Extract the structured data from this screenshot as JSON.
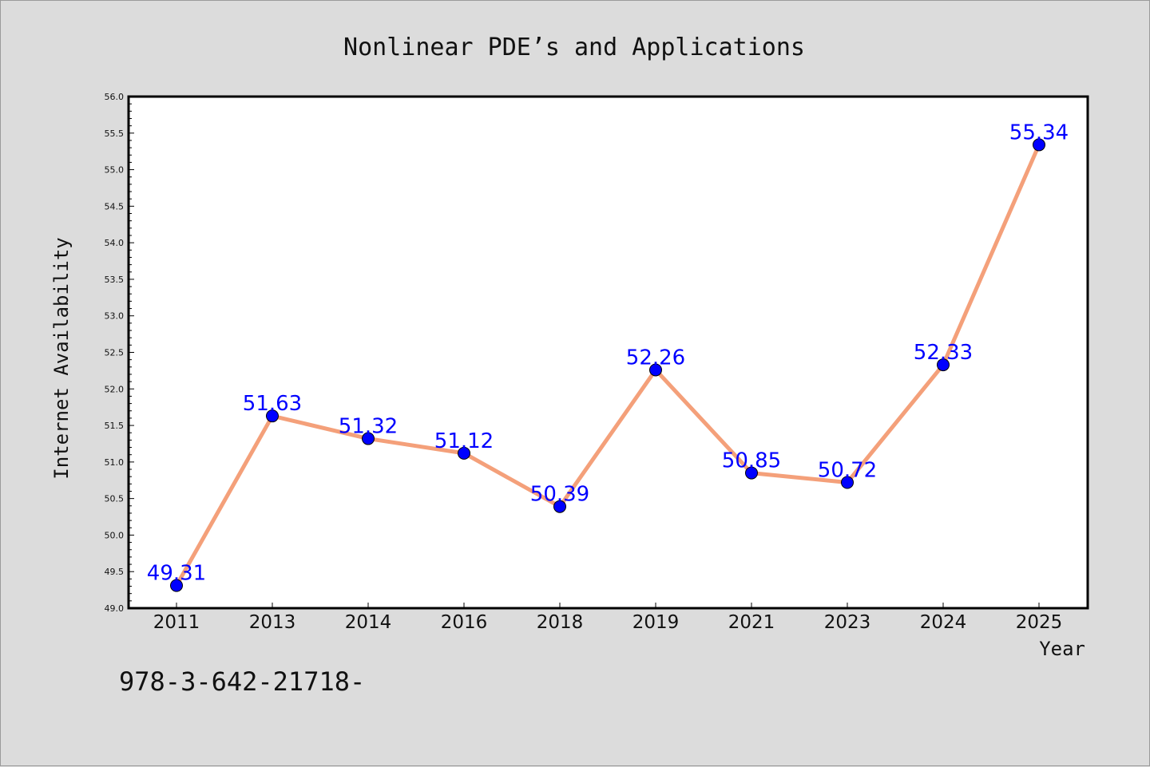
{
  "colors": {
    "background": "#dcdcdc",
    "plot_background": "#ffffff",
    "line": "#f4a07a",
    "marker": "#0000ff",
    "data_label": "#0000ff"
  },
  "footer_text": "978-3-642-21718-",
  "chart_data": {
    "type": "line",
    "title": "Nonlinear PDE’s and Applications",
    "xlabel": "Year",
    "ylabel": "Internet Availability",
    "categories": [
      "2011",
      "2013",
      "2014",
      "2016",
      "2018",
      "2019",
      "2021",
      "2023",
      "2024",
      "2025"
    ],
    "series": [
      {
        "values": [
          49.31,
          51.63,
          51.32,
          51.12,
          50.39,
          52.26,
          50.85,
          50.72,
          52.33,
          55.34
        ]
      }
    ],
    "data_labels": [
      "49.31",
      "51.63",
      "51.32",
      "51.12",
      "50.39",
      "52.26",
      "50.85",
      "50.72",
      "52.33",
      "55.34"
    ],
    "ylim": [
      49.0,
      56.0
    ],
    "yticks": [
      "49.0",
      "49.5",
      "50.0",
      "50.5",
      "51.0",
      "51.5",
      "52.0",
      "52.5",
      "53.0",
      "53.5",
      "54.0",
      "54.5",
      "55.0",
      "55.5",
      "56.0"
    ],
    "grid": false,
    "legend": "none"
  }
}
